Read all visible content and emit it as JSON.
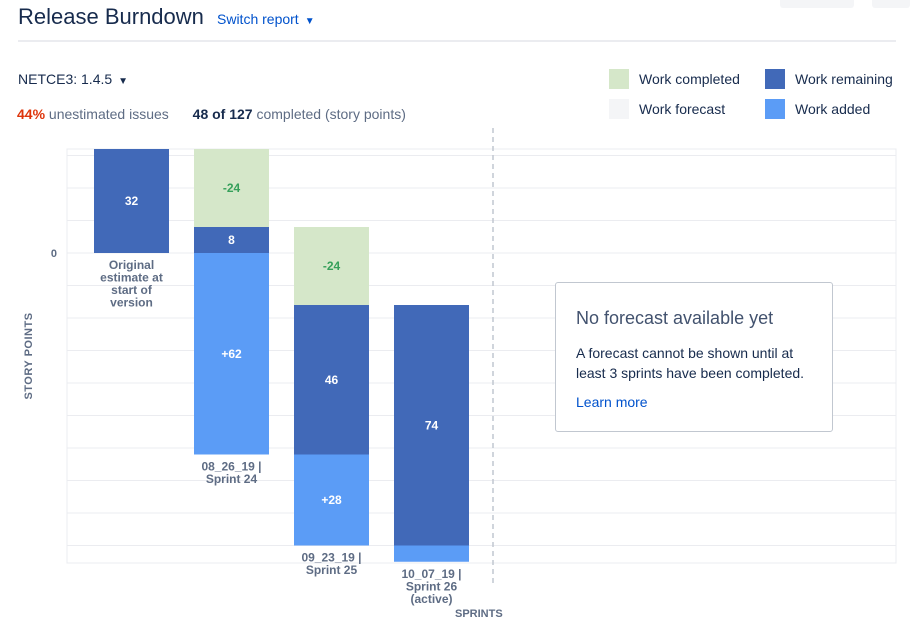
{
  "header": {
    "title": "Release Burndown",
    "switch_report": "Switch report"
  },
  "version_select": {
    "value": "NETCE3: 1.4.5"
  },
  "stats": {
    "unestimated_pct": "44%",
    "unestimated_text": "unestimated issues",
    "completed_count": "48 of 127",
    "completed_text": "completed (story points)"
  },
  "legend": [
    {
      "label": "Work completed",
      "color": "#d5e7c9"
    },
    {
      "label": "Work remaining",
      "color": "#4169b8"
    },
    {
      "label": "Work forecast",
      "color": "#f4f5f7"
    },
    {
      "label": "Work added",
      "color": "#5b9cf6"
    }
  ],
  "forecast": {
    "title": "No forecast available yet",
    "text": "A forecast cannot be shown until at least 3 sprints have been completed.",
    "link": "Learn more"
  },
  "chart_data": {
    "type": "bar",
    "stacked": true,
    "ylabel": "STORY POINTS",
    "xlabel": "SPRINTS",
    "y_tick_labels": [
      "0"
    ],
    "ylim": [
      -120,
      40
    ],
    "categories": [
      [
        "Original",
        "estimate at",
        "start of",
        "version"
      ],
      [
        "08_26_19 |",
        "Sprint 24"
      ],
      [
        "09_23_19 |",
        "Sprint 25"
      ],
      [
        "10_07_19 |",
        "Sprint 26",
        "(active)"
      ]
    ],
    "colors": {
      "completed": "#d5e7c9",
      "remaining": "#4169b8",
      "added": "#5b9cf6",
      "completed_label": "#36a05a",
      "bar_label": "#ffffff"
    },
    "bars": [
      {
        "segments": [
          {
            "kind": "remaining",
            "from": 32,
            "to": 0,
            "label": "32"
          }
        ]
      },
      {
        "segments": [
          {
            "kind": "completed",
            "from": 32,
            "to": 8,
            "label": "-24"
          },
          {
            "kind": "remaining",
            "from": 8,
            "to": 0,
            "label": "8"
          },
          {
            "kind": "added",
            "from": 0,
            "to": -62,
            "label": "+62"
          }
        ]
      },
      {
        "segments": [
          {
            "kind": "completed",
            "from": 8,
            "to": -16,
            "label": "-24"
          },
          {
            "kind": "remaining",
            "from": -16,
            "to": -62,
            "label": "46"
          },
          {
            "kind": "added",
            "from": -62,
            "to": -90,
            "label": "+28"
          }
        ]
      },
      {
        "segments": [
          {
            "kind": "remaining",
            "from": -16,
            "to": -90,
            "label": "74"
          },
          {
            "kind": "added",
            "from": -90,
            "to": -95,
            "label": ""
          }
        ]
      }
    ]
  }
}
